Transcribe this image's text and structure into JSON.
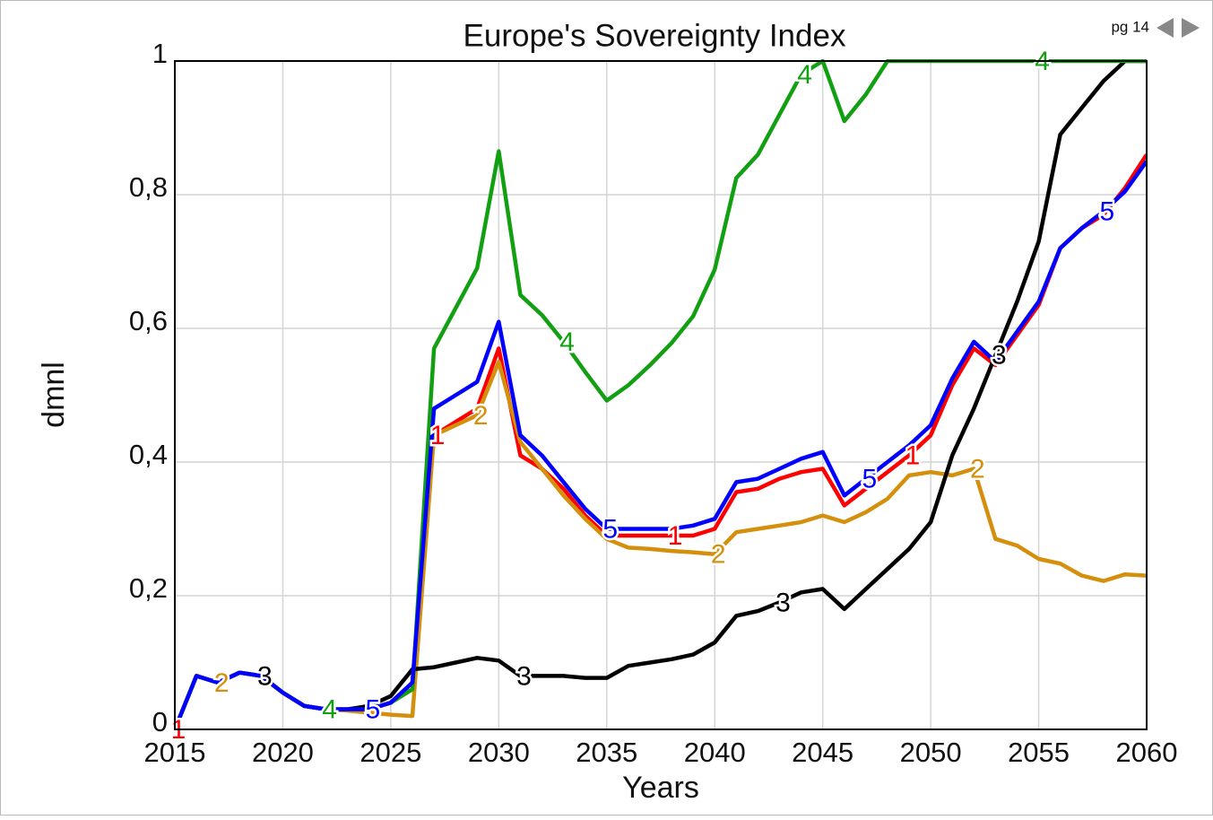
{
  "page": {
    "text": "pg 14"
  },
  "chart_data": {
    "type": "line",
    "title": "Europe's Sovereignty Index",
    "xlabel": "Years",
    "ylabel": "dmnl",
    "x": [
      2015,
      2016,
      2017,
      2018,
      2019,
      2020,
      2021,
      2022,
      2023,
      2024,
      2025,
      2026,
      2027,
      2028,
      2029,
      2030,
      2031,
      2032,
      2033,
      2034,
      2035,
      2036,
      2037,
      2038,
      2039,
      2040,
      2041,
      2042,
      2043,
      2044,
      2045,
      2046,
      2047,
      2048,
      2049,
      2050,
      2051,
      2052,
      2053,
      2054,
      2055,
      2056,
      2057,
      2058,
      2059,
      2060
    ],
    "xlim": [
      2015,
      2060
    ],
    "xticks": [
      2015,
      2020,
      2025,
      2030,
      2035,
      2040,
      2045,
      2050,
      2055,
      2060
    ],
    "ylim": [
      0,
      1
    ],
    "yticks": [
      0,
      {
        "value": 0.2,
        "label": "0,2"
      },
      {
        "value": 0.4,
        "label": "0,4"
      },
      {
        "value": 0.6,
        "label": "0,6"
      },
      {
        "value": 0.8,
        "label": "0,8"
      },
      1
    ],
    "grid": true,
    "series": [
      {
        "name": "1",
        "color": "#ff0000",
        "values": [
          0,
          0.08,
          0.07,
          0.085,
          0.08,
          0.055,
          0.035,
          0.03,
          0.03,
          0.03,
          0.04,
          0.07,
          0.44,
          0.46,
          0.48,
          0.57,
          0.41,
          0.39,
          0.36,
          0.32,
          0.29,
          0.29,
          0.29,
          0.29,
          0.29,
          0.3,
          0.355,
          0.36,
          0.375,
          0.385,
          0.39,
          0.335,
          0.36,
          0.385,
          0.41,
          0.44,
          0.515,
          0.57,
          0.545,
          0.59,
          0.635,
          0.72,
          0.75,
          0.77,
          0.81,
          0.86
        ]
      },
      {
        "name": "2",
        "color": "#d4900c",
        "values": [
          0,
          0.08,
          0.07,
          0.085,
          0.08,
          0.055,
          0.035,
          0.03,
          0.028,
          0.025,
          0.022,
          0.02,
          0.44,
          0.455,
          0.47,
          0.55,
          0.43,
          0.39,
          0.35,
          0.315,
          0.285,
          0.272,
          0.27,
          0.267,
          0.265,
          0.262,
          0.295,
          0.3,
          0.305,
          0.31,
          0.32,
          0.31,
          0.325,
          0.345,
          0.38,
          0.385,
          0.38,
          0.39,
          0.285,
          0.275,
          0.255,
          0.248,
          0.23,
          0.222,
          0.232,
          0.23
        ]
      },
      {
        "name": "3",
        "color": "#000000",
        "values": [
          0,
          0.08,
          0.07,
          0.085,
          0.08,
          0.055,
          0.035,
          0.03,
          0.03,
          0.035,
          0.05,
          0.09,
          0.093,
          0.1,
          0.107,
          0.103,
          0.08,
          0.08,
          0.08,
          0.077,
          0.077,
          0.095,
          0.1,
          0.105,
          0.112,
          0.13,
          0.17,
          0.177,
          0.19,
          0.205,
          0.21,
          0.18,
          0.21,
          0.24,
          0.27,
          0.31,
          0.41,
          0.48,
          0.56,
          0.64,
          0.73,
          0.89,
          0.93,
          0.97,
          1.0,
          1.0
        ]
      },
      {
        "name": "4",
        "color": "#12a012",
        "values": [
          0,
          0.08,
          0.07,
          0.085,
          0.08,
          0.055,
          0.035,
          0.03,
          0.03,
          0.03,
          0.04,
          0.06,
          0.57,
          0.63,
          0.69,
          0.865,
          0.65,
          0.62,
          0.58,
          0.535,
          0.492,
          0.515,
          0.545,
          0.578,
          0.618,
          0.688,
          0.825,
          0.86,
          0.92,
          0.98,
          1.0,
          0.91,
          0.95,
          1.0,
          1.0,
          1.0,
          1.0,
          1.0,
          1.0,
          1.0,
          1.0,
          1.0,
          1.0,
          1.0,
          1.0,
          1.0
        ]
      },
      {
        "name": "5",
        "color": "#0000ff",
        "values": [
          0,
          0.08,
          0.07,
          0.085,
          0.08,
          0.055,
          0.035,
          0.03,
          0.03,
          0.03,
          0.04,
          0.07,
          0.48,
          0.5,
          0.52,
          0.61,
          0.44,
          0.41,
          0.37,
          0.33,
          0.3,
          0.3,
          0.3,
          0.3,
          0.305,
          0.315,
          0.37,
          0.375,
          0.39,
          0.405,
          0.415,
          0.35,
          0.375,
          0.4,
          0.425,
          0.455,
          0.525,
          0.58,
          0.55,
          0.595,
          0.64,
          0.72,
          0.75,
          0.775,
          0.805,
          0.85
        ]
      }
    ]
  }
}
